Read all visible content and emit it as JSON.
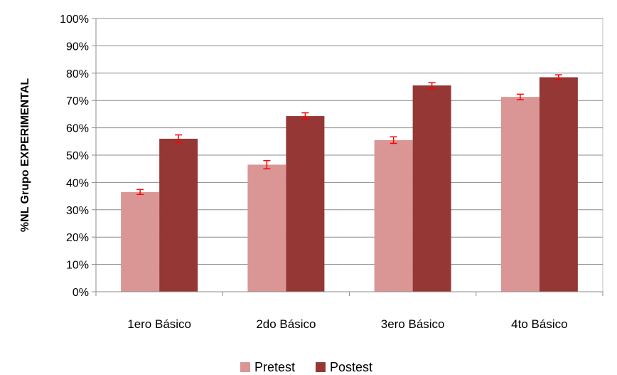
{
  "chart_data": {
    "type": "bar",
    "title": "",
    "xlabel": "",
    "ylabel": "%NL Grupo EXPERIMENTAL",
    "ylim": [
      0,
      100
    ],
    "yticks": [
      "0%",
      "10%",
      "20%",
      "30%",
      "40%",
      "50%",
      "60%",
      "70%",
      "80%",
      "90%",
      "100%"
    ],
    "categories": [
      "1ero Básico",
      "2do Básico",
      "3ero Básico",
      "4to Básico"
    ],
    "series": [
      {
        "name": "Pretest",
        "color": "#d99694",
        "values": [
          36.5,
          46.5,
          55.5,
          71.3
        ],
        "errors": [
          0.9,
          1.5,
          1.2,
          1.0
        ]
      },
      {
        "name": "Postest",
        "color": "#953735",
        "values": [
          56.0,
          64.3,
          75.5,
          78.5
        ],
        "errors": [
          1.4,
          1.2,
          1.0,
          0.9
        ]
      }
    ],
    "error_bar_color": "#ff0000",
    "grid": true,
    "legend_position": "bottom"
  }
}
